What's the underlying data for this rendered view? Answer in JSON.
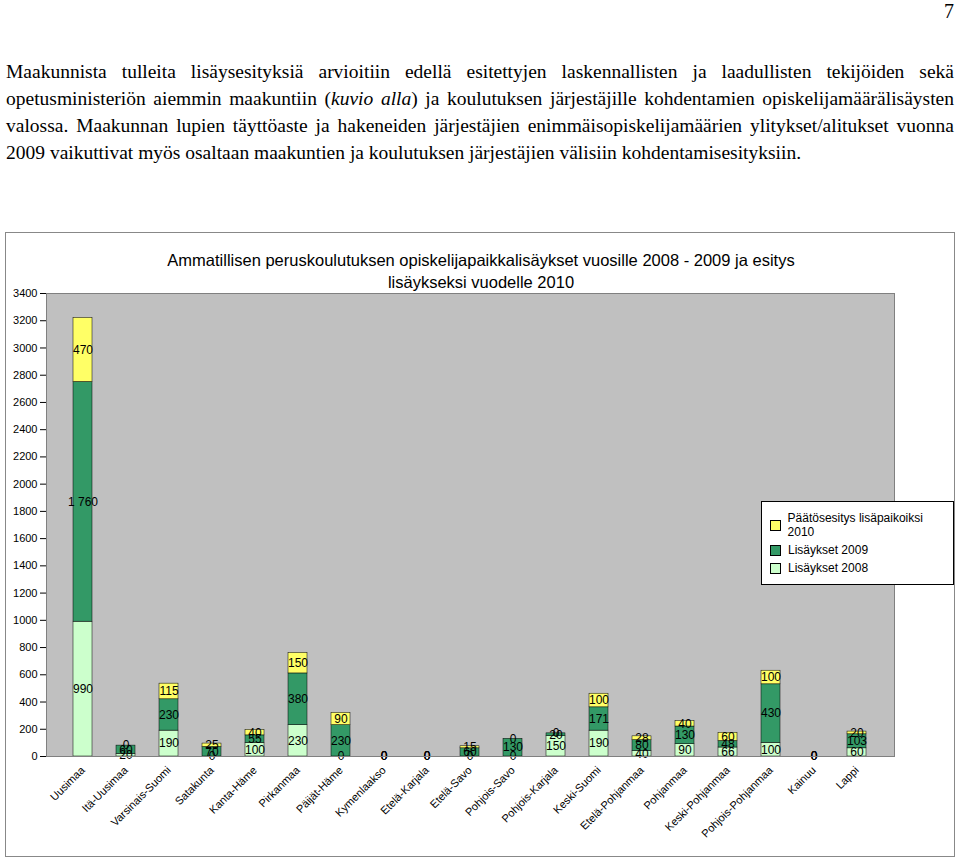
{
  "page": {
    "number": "7",
    "paragraph": [
      {
        "text": "Maakunnista tulleita lisäysesityksiä arvioitiin edellä esitettyjen laskennallisten ja laadullisten tekijöiden sekä opetusministeriön aiemmin maakuntiin ("
      },
      {
        "text": "kuvio alla",
        "italic": true
      },
      {
        "text": ") ja koulutuksen järjestäjille kohdentamien opiskelijamäärälisäysten valossa. Maakunnan lupien täyttöaste ja hakeneiden järjestäjien enimmäisopiskelijamäärien ylitykset/alitukset vuonna 2009 vaikuttivat myös osaltaan maakuntien ja koulutuksen järjestäjien välisiin kohdentamisesityksiin."
      }
    ]
  },
  "chart_data": {
    "type": "bar",
    "stacked": true,
    "data_labels": true,
    "grid": false,
    "legend": "right",
    "title": "Ammatillisen peruskoulutuksen opiskelijapaikkalisäykset vuosille 2008 - 2009 ja esitys lisäykseksi vuodelle 2010",
    "categories": [
      "Uusimaa",
      "Itä-Uusimaa",
      "Varsinais-Suomi",
      "Satakunta",
      "Kanta-Häme",
      "Pirkanmaa",
      "Päijät-Häme",
      "Kymenlaakso",
      "Etelä-Karjala",
      "Etelä-Savo",
      "Pohjois-Savo",
      "Pohjois-Karjala",
      "Keski-Suomi",
      "Etelä-Pohjanmaa",
      "Pohjanmaa",
      "Keski-Pohjanmaa",
      "Pohjois-Pohjanmaa",
      "Kainuu",
      "Lappi"
    ],
    "series": [
      {
        "name": "Lisäykset 2008",
        "color": "#ccffcc",
        "values": [
          990,
          20,
          190,
          0,
          100,
          230,
          0,
          0,
          0,
          0,
          0,
          150,
          190,
          40,
          90,
          66,
          100,
          0,
          60
        ]
      },
      {
        "name": "Lisäykset 2009",
        "color": "#339966",
        "values": [
          1760,
          60,
          230,
          70,
          55,
          380,
          230,
          0,
          0,
          60,
          130,
          20,
          171,
          80,
          130,
          48,
          430,
          0,
          103
        ],
        "value_labels": [
          "1 760",
          "60",
          "230",
          "70",
          "55",
          "380",
          "230",
          "0",
          "0",
          "60",
          "130",
          "20",
          "171",
          "80",
          "130",
          "48",
          "430",
          "0",
          "103"
        ]
      },
      {
        "name": "Päätösesitys lisäpaikoiksi 2010",
        "color": "#ffff66",
        "values": [
          470,
          0,
          115,
          25,
          40,
          150,
          90,
          0,
          0,
          15,
          0,
          0,
          100,
          28,
          40,
          60,
          100,
          0,
          20
        ]
      }
    ],
    "ylim": [
      0,
      3400
    ],
    "yticks": [
      0,
      200,
      400,
      600,
      800,
      1000,
      1200,
      1400,
      1600,
      1800,
      2000,
      2200,
      2400,
      2600,
      2800,
      3000,
      3200,
      3400
    ]
  }
}
